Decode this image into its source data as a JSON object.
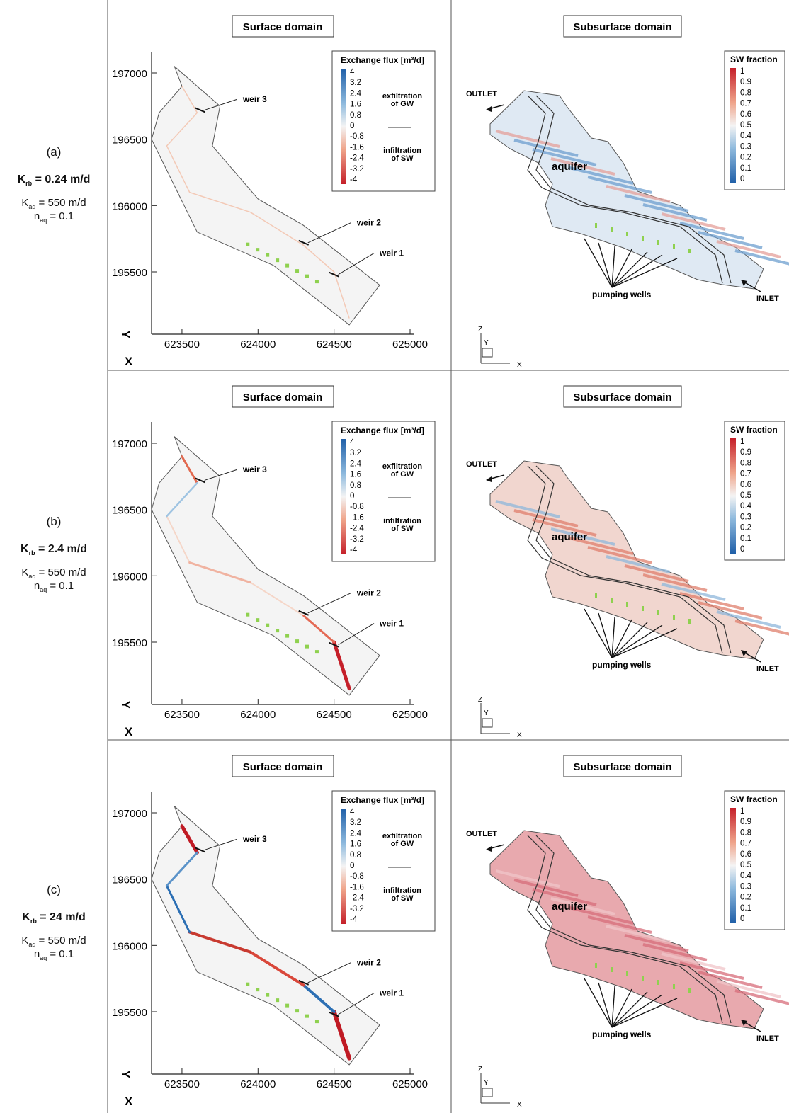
{
  "rows": [
    {
      "label": "(a)",
      "krb_sym": "K",
      "krb_sub": "rb",
      "krb_val": " = 0.24 m/d",
      "kaq_sym": "K",
      "kaq_sub": "aq",
      "kaq_val": " = 550 m/d",
      "naq_sym": "n",
      "naq_sub": "aq",
      "naq_val": " = 0.1",
      "level": "low"
    },
    {
      "label": "(b)",
      "krb_sym": "K",
      "krb_sub": "rb",
      "krb_val": " = 2.4 m/d",
      "kaq_sym": "K",
      "kaq_sub": "aq",
      "kaq_val": " = 550 m/d",
      "naq_sym": "n",
      "naq_sub": "aq",
      "naq_val": " = 0.1",
      "level": "mid"
    },
    {
      "label": "(c)",
      "krb_sym": "K",
      "krb_sub": "rb",
      "krb_val": " = 24 m/d",
      "kaq_sym": "K",
      "kaq_sub": "aq",
      "kaq_val": " = 550 m/d",
      "naq_sym": "n",
      "naq_sub": "aq",
      "naq_val": " = 0.1",
      "level": "high"
    }
  ],
  "surface": {
    "title": "Surface domain",
    "legend_title": "Exchange flux [m³/d]",
    "legend_values": [
      "4",
      "3.2",
      "2.4",
      "1.6",
      "0.8",
      "0",
      "-0.8",
      "-1.6",
      "-2.4",
      "-3.2",
      "-4"
    ],
    "exfil_label": [
      "exfiltration",
      "of GW"
    ],
    "infil_label": [
      "infiltration",
      "of SW"
    ],
    "y_ticks": [
      "197000",
      "196500",
      "196000",
      "195500"
    ],
    "x_ticks": [
      "623500",
      "624000",
      "624500",
      "625000"
    ],
    "x_axis_label": "X",
    "y_axis_label": "Y",
    "weirs": [
      "weir 3",
      "weir 2",
      "weir 1"
    ]
  },
  "subsurface": {
    "title": "Subsurface domain",
    "legend_title": "SW fraction",
    "legend_values": [
      "1",
      "0.9",
      "0.8",
      "0.7",
      "0.6",
      "0.5",
      "0.4",
      "0.3",
      "0.2",
      "0.1",
      "0"
    ],
    "outlet": "OUTLET",
    "inlet": "INLET",
    "aquifer": "aquifer",
    "pumping_wells": "pumping wells",
    "axis_z": "Z",
    "axis_y": "Y",
    "axis_x": "X"
  },
  "colors": {
    "blue": "#2c6fb4",
    "red": "#c8262b",
    "well": "#8fd14f",
    "domain_fill": "#f4f4f4",
    "grid": "#444444"
  }
}
